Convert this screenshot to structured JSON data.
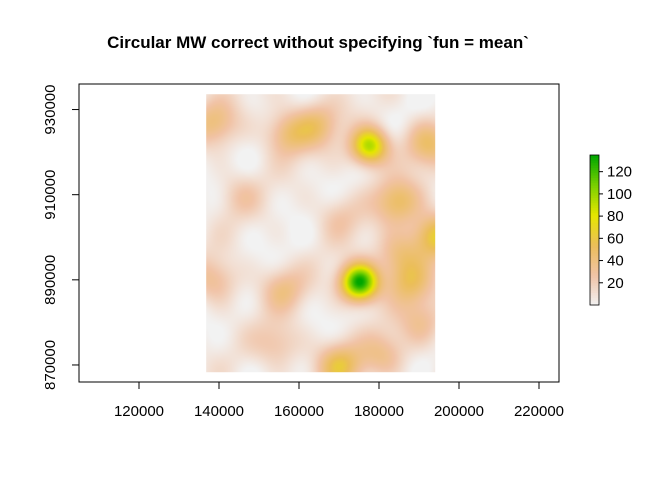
{
  "chart_data": {
    "type": "heatmap",
    "title": "Circular MW correct without specifying `fun = mean`",
    "xlabel": "",
    "ylabel": "",
    "xlim": [
      105000,
      225000
    ],
    "ylim": [
      866000,
      936000
    ],
    "x_ticks": [
      120000,
      140000,
      160000,
      180000,
      200000,
      220000
    ],
    "y_ticks": [
      870000,
      890000,
      910000,
      930000
    ],
    "x_tick_labels": [
      "120000",
      "140000",
      "160000",
      "180000",
      "200000",
      "220000"
    ],
    "y_tick_labels": [
      "870000",
      "890000",
      "910000",
      "930000"
    ],
    "raster_extent": {
      "xmin": 136800,
      "xmax": 194000,
      "ymin": 868400,
      "ymax": 933600
    },
    "value_range": [
      0,
      135
    ],
    "hotspots": [
      {
        "x": 175000,
        "y": 889500,
        "value": 135
      },
      {
        "x": 177500,
        "y": 921500,
        "value": 95
      },
      {
        "x": 194000,
        "y": 900500,
        "value": 62
      },
      {
        "x": 170000,
        "y": 870000,
        "value": 50
      },
      {
        "x": 184500,
        "y": 908500,
        "value": 45
      },
      {
        "x": 157000,
        "y": 924500,
        "value": 40
      },
      {
        "x": 192000,
        "y": 922000,
        "value": 40
      },
      {
        "x": 139000,
        "y": 927000,
        "value": 35
      },
      {
        "x": 164500,
        "y": 926500,
        "value": 35
      },
      {
        "x": 139000,
        "y": 890000,
        "value": 30
      },
      {
        "x": 156000,
        "y": 888000,
        "value": 30
      },
      {
        "x": 185000,
        "y": 896000,
        "value": 35
      },
      {
        "x": 187500,
        "y": 889500,
        "value": 40
      },
      {
        "x": 154500,
        "y": 875000,
        "value": 25
      },
      {
        "x": 181000,
        "y": 872500,
        "value": 30
      },
      {
        "x": 190500,
        "y": 880000,
        "value": 28
      },
      {
        "x": 145000,
        "y": 910000,
        "value": 18
      },
      {
        "x": 170000,
        "y": 905000,
        "value": 20
      }
    ],
    "legend": {
      "placement": "right",
      "ticks": [
        20,
        40,
        60,
        80,
        100,
        120
      ],
      "tick_labels": [
        "20",
        "40",
        "60",
        "80",
        "100",
        "120"
      ],
      "colors": [
        "#f2f2f2",
        "#f1c3a6",
        "#ebbe5a",
        "#e6e600",
        "#7ad000",
        "#00a600"
      ]
    },
    "grid": false
  }
}
